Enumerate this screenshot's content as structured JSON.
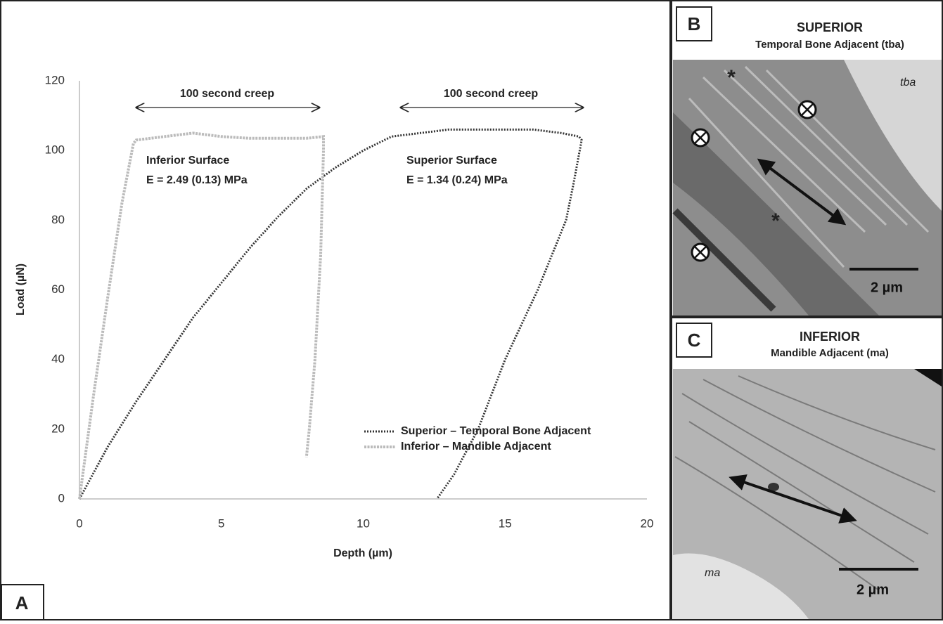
{
  "chart_data": {
    "type": "line",
    "xlabel": "Depth (µm)",
    "ylabel": "Load (µN)",
    "xlim": [
      0,
      20
    ],
    "xticks": [
      0,
      5,
      10,
      15,
      20
    ],
    "ylim": [
      0,
      120
    ],
    "yticks": [
      0,
      20,
      40,
      60,
      80,
      100,
      120
    ],
    "annotations": [
      "100 second creep",
      "100 second creep",
      "Inferior Surface",
      "E = 2.49 (0.13) MPa",
      "Superior Surface",
      "E = 1.34 (0.24) MPa"
    ],
    "series": [
      {
        "name": "Superior – Temporal Bone Adjacent",
        "color": "#333333",
        "x": [
          0,
          1,
          2,
          3,
          4,
          5,
          6,
          7,
          8,
          9,
          10,
          11,
          12,
          13,
          14,
          15,
          16,
          17,
          17.6,
          17.7,
          17.4,
          17.15,
          16.15,
          15.0,
          14.05,
          13.2,
          12.6
        ],
        "values": [
          0,
          15,
          28,
          40,
          52,
          62,
          72,
          81,
          89,
          95,
          100,
          104,
          105,
          106,
          106,
          106,
          106,
          105,
          104,
          103,
          90,
          80,
          60,
          40,
          20,
          7,
          0
        ]
      },
      {
        "name": "Inferior – Mandible Adjacent",
        "color": "#bbbbbb",
        "x": [
          0,
          0.5,
          1,
          1.5,
          1.9,
          2,
          3,
          4,
          5,
          6,
          7,
          8,
          8.6,
          8.6,
          8.5,
          8.3,
          8.1,
          8.0
        ],
        "values": [
          0,
          30,
          58,
          85,
          102,
          103,
          104,
          105,
          104,
          103.5,
          103.5,
          103.5,
          104,
          100,
          70,
          40,
          20,
          12
        ]
      }
    ]
  },
  "panels": {
    "A": {
      "label": "A"
    },
    "B": {
      "label": "B",
      "heading": "SUPERIOR",
      "subheading": "Temporal Bone Adjacent (tba)",
      "tag": "tba",
      "scale": "2 µm"
    },
    "C": {
      "label": "C",
      "heading": "INFERIOR",
      "subheading": "Mandible Adjacent (ma)",
      "tag": "ma",
      "scale": "2 µm"
    }
  }
}
